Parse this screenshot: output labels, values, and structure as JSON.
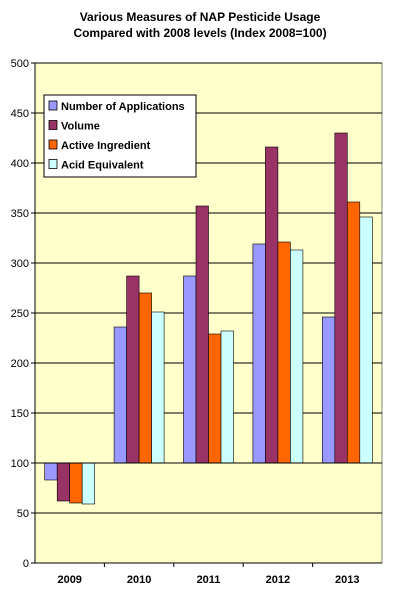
{
  "chart_data": {
    "type": "bar",
    "title": [
      "Various Measures of NAP Pesticide Usage",
      "Compared with 2008 levels (Index 2008=100)"
    ],
    "categories": [
      "2009",
      "2010",
      "2011",
      "2012",
      "2013"
    ],
    "series": [
      {
        "name": "Number of Applications",
        "color": "#9999ff",
        "values": [
          83,
          236,
          287,
          319,
          246
        ]
      },
      {
        "name": "Volume",
        "color": "#993366",
        "values": [
          62,
          287,
          357,
          416,
          430
        ]
      },
      {
        "name": "Active Ingredient",
        "color": "#ff6600",
        "values": [
          60,
          270,
          229,
          321,
          361
        ]
      },
      {
        "name": "Acid Equivalent",
        "color": "#ccffff",
        "values": [
          59,
          251,
          232,
          313,
          346
        ]
      }
    ],
    "baseline": 100,
    "ylim": [
      0,
      500
    ],
    "yticks": [
      0,
      50,
      100,
      150,
      200,
      250,
      300,
      350,
      400,
      450,
      500
    ],
    "grid": true,
    "legend_position": "top-left",
    "plot_background": "#ffffcc"
  }
}
